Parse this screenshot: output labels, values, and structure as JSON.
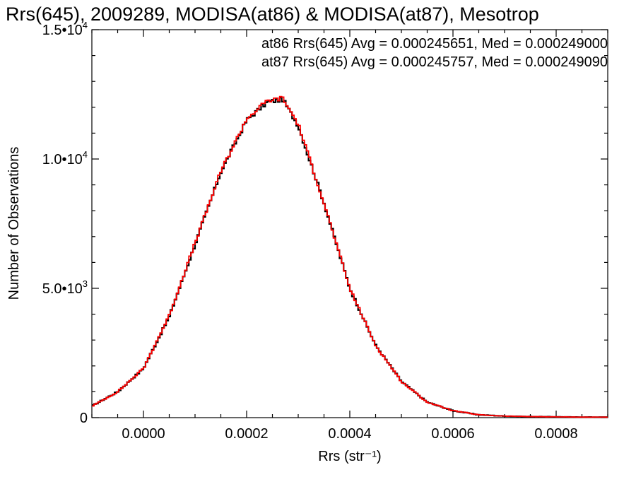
{
  "chart_data": {
    "type": "line",
    "title": "Rrs(645), 2009289, MODISA(at86) & MODISA(at87), Mesotrop",
    "xlabel": "Rrs (str⁻¹)",
    "ylabel": "Number of Observations",
    "xlim": [
      -0.0001,
      0.0009
    ],
    "ylim": [
      0,
      15000
    ],
    "x_ticks": [
      0.0,
      0.0002,
      0.0004,
      0.0006,
      0.0008
    ],
    "x_tick_labels": [
      "0.0000",
      "0.0002",
      "0.0004",
      "0.0006",
      "0.0008"
    ],
    "y_ticks": [
      0,
      5000,
      10000,
      15000
    ],
    "y_tick_labels": [
      {
        "mantissa": "0",
        "exp": ""
      },
      {
        "mantissa": "5.0•10",
        "exp": "3"
      },
      {
        "mantissa": "1.0•10",
        "exp": "4"
      },
      {
        "mantissa": "1.5•10",
        "exp": "4"
      }
    ],
    "grid": false,
    "legend_position": "top-right",
    "x": [
      -0.0001,
      -5e-05,
      0.0,
      5e-05,
      0.0001,
      0.00015,
      0.0002,
      0.00024,
      0.00027,
      0.0003,
      0.00035,
      0.0004,
      0.00045,
      0.0005,
      0.00055,
      0.0006,
      0.00065,
      0.0007,
      0.00075,
      0.0008,
      0.00085,
      0.0009
    ],
    "series": [
      {
        "name": "at86",
        "color": "#000000",
        "values": [
          450,
          1000,
          1900,
          3900,
          6700,
          9500,
          11500,
          12200,
          12300,
          11300,
          8300,
          5000,
          2800,
          1400,
          600,
          270,
          110,
          60,
          40,
          30,
          20,
          20
        ]
      },
      {
        "name": "at87",
        "color": "#ff0000",
        "values": [
          440,
          1000,
          1900,
          3950,
          6750,
          9520,
          11550,
          12250,
          12350,
          11350,
          8300,
          5000,
          2800,
          1400,
          600,
          270,
          110,
          60,
          40,
          30,
          20,
          20
        ]
      }
    ],
    "annotations": [
      {
        "text": "at86 Rrs(645) Avg = 0.000245651, Med = 0.000249000",
        "color": "#000000"
      },
      {
        "text": "at87 Rrs(645) Avg = 0.000245757, Med = 0.000249090",
        "color": "#ff0000"
      }
    ]
  }
}
